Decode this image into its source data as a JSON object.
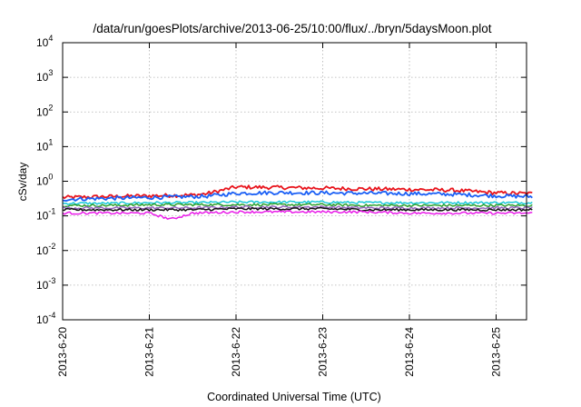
{
  "chart_data": {
    "type": "line",
    "title": "/data/run/goesPlots/archive/2013-06-25/10:00/flux/../bryn/5daysMoon.plot",
    "xlabel": "Coordinated Universal Time (UTC)",
    "ylabel": "cSv/day",
    "y_scale": "log",
    "ylim": [
      0.0001,
      10000
    ],
    "xlim": [
      "2013-06-20 00:00",
      "2013-06-25 10:00"
    ],
    "grid": true,
    "x_ticks": [
      "2013-6-20",
      "2013-6-21",
      "2013-6-22",
      "2013-6-23",
      "2013-6-24",
      "2013-6-25"
    ],
    "y_ticks": [
      {
        "base": "10",
        "exp": "-4"
      },
      {
        "base": "10",
        "exp": "-3"
      },
      {
        "base": "10",
        "exp": "-2"
      },
      {
        "base": "10",
        "exp": "-1"
      },
      {
        "base": "10",
        "exp": "0"
      },
      {
        "base": "10",
        "exp": "1"
      },
      {
        "base": "10",
        "exp": "2"
      },
      {
        "base": "10",
        "exp": "3"
      },
      {
        "base": "10",
        "exp": "4"
      }
    ],
    "series": [
      {
        "color": "#e8141c",
        "x": [
          "2013-06-20 00:00",
          "2013-06-20 12:00",
          "2013-06-21 00:00",
          "2013-06-21 12:00",
          "2013-06-21 16:00",
          "2013-06-22 00:00",
          "2013-06-22 12:00",
          "2013-06-23 00:00",
          "2013-06-23 12:00",
          "2013-06-24 00:00",
          "2013-06-24 12:00",
          "2013-06-25 00:00",
          "2013-06-25 10:00"
        ],
        "values": [
          0.34,
          0.36,
          0.38,
          0.4,
          0.44,
          0.68,
          0.66,
          0.63,
          0.6,
          0.58,
          0.55,
          0.46,
          0.44
        ]
      },
      {
        "color": "#1a5ff5",
        "x": [
          "2013-06-20 00:00",
          "2013-06-20 12:00",
          "2013-06-21 00:00",
          "2013-06-21 12:00",
          "2013-06-21 16:00",
          "2013-06-22 00:00",
          "2013-06-22 12:00",
          "2013-06-23 00:00",
          "2013-06-23 12:00",
          "2013-06-24 00:00",
          "2013-06-24 12:00",
          "2013-06-25 00:00",
          "2013-06-25 10:00"
        ],
        "values": [
          0.3,
          0.32,
          0.34,
          0.36,
          0.37,
          0.45,
          0.47,
          0.46,
          0.45,
          0.44,
          0.42,
          0.38,
          0.36
        ]
      },
      {
        "color": "#1ac8d8",
        "x": [
          "2013-06-20 00:00",
          "2013-06-20 12:00",
          "2013-06-21 00:00",
          "2013-06-21 12:00",
          "2013-06-22 00:00",
          "2013-06-22 12:00",
          "2013-06-23 00:00",
          "2013-06-23 12:00",
          "2013-06-24 00:00",
          "2013-06-24 12:00",
          "2013-06-25 00:00",
          "2013-06-25 10:00"
        ],
        "values": [
          0.23,
          0.23,
          0.24,
          0.24,
          0.25,
          0.25,
          0.25,
          0.24,
          0.24,
          0.24,
          0.24,
          0.24
        ]
      },
      {
        "color": "#2ca02c",
        "x": [
          "2013-06-20 00:00",
          "2013-06-20 12:00",
          "2013-06-21 00:00",
          "2013-06-21 12:00",
          "2013-06-22 00:00",
          "2013-06-22 12:00",
          "2013-06-23 00:00",
          "2013-06-23 12:00",
          "2013-06-24 00:00",
          "2013-06-24 12:00",
          "2013-06-25 00:00",
          "2013-06-25 10:00"
        ],
        "values": [
          0.2,
          0.2,
          0.21,
          0.21,
          0.21,
          0.21,
          0.21,
          0.2,
          0.2,
          0.2,
          0.2,
          0.2
        ]
      },
      {
        "color": "#9467bd",
        "x": [
          "2013-06-20 00:00",
          "2013-06-20 12:00",
          "2013-06-21 00:00",
          "2013-06-21 12:00",
          "2013-06-22 00:00",
          "2013-06-22 12:00",
          "2013-06-23 00:00",
          "2013-06-23 12:00",
          "2013-06-24 00:00",
          "2013-06-24 12:00",
          "2013-06-25 00:00",
          "2013-06-25 10:00"
        ],
        "values": [
          0.17,
          0.17,
          0.17,
          0.17,
          0.18,
          0.18,
          0.18,
          0.17,
          0.17,
          0.17,
          0.17,
          0.17
        ]
      },
      {
        "color": "#111111",
        "x": [
          "2013-06-20 00:00",
          "2013-06-20 12:00",
          "2013-06-21 00:00",
          "2013-06-21 12:00",
          "2013-06-22 00:00",
          "2013-06-22 12:00",
          "2013-06-23 00:00",
          "2013-06-23 12:00",
          "2013-06-24 00:00",
          "2013-06-24 12:00",
          "2013-06-25 00:00",
          "2013-06-25 10:00"
        ],
        "values": [
          0.15,
          0.15,
          0.15,
          0.15,
          0.16,
          0.16,
          0.16,
          0.15,
          0.15,
          0.15,
          0.15,
          0.15
        ]
      },
      {
        "color": "#e81ce8",
        "x": [
          "2013-06-20 00:00",
          "2013-06-20 12:00",
          "2013-06-21 00:00",
          "2013-06-21 06:00",
          "2013-06-21 12:00",
          "2013-06-22 00:00",
          "2013-06-22 12:00",
          "2013-06-23 00:00",
          "2013-06-23 12:00",
          "2013-06-24 00:00",
          "2013-06-24 12:00",
          "2013-06-25 00:00",
          "2013-06-25 10:00"
        ],
        "values": [
          0.12,
          0.12,
          0.12,
          0.08,
          0.12,
          0.13,
          0.13,
          0.13,
          0.13,
          0.12,
          0.12,
          0.12,
          0.12
        ]
      }
    ]
  }
}
